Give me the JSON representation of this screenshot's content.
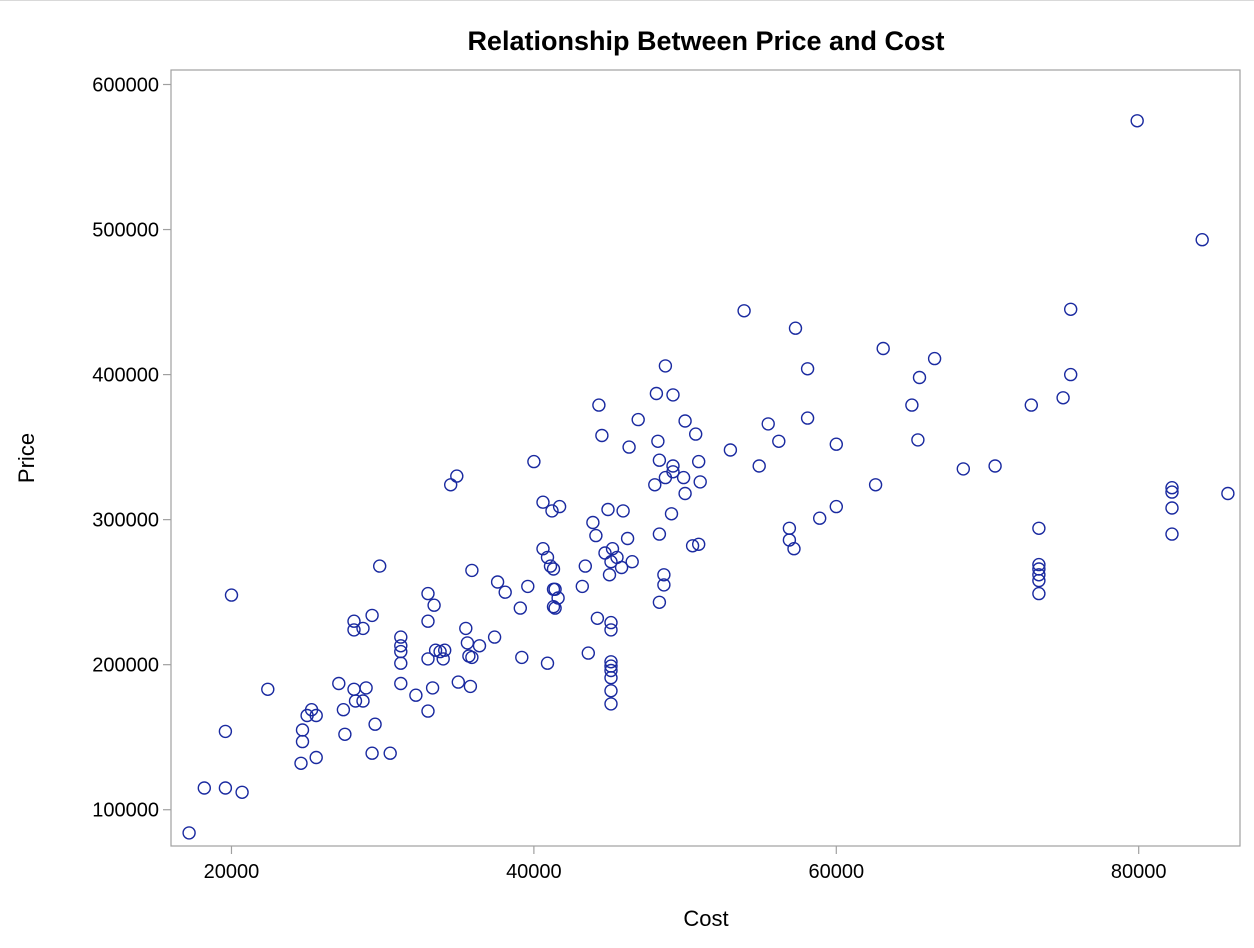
{
  "chart_data": {
    "type": "scatter",
    "title": "Relationship Between Price and Cost",
    "xlabel": "Cost",
    "ylabel": "Price",
    "xlim": [
      16000,
      86700
    ],
    "ylim": [
      75000,
      610000
    ],
    "xticks": [
      20000,
      40000,
      60000,
      80000
    ],
    "yticks": [
      100000,
      200000,
      300000,
      400000,
      500000,
      600000
    ],
    "xtick_labels": [
      "20000",
      "40000",
      "60000",
      "80000"
    ],
    "ytick_labels": [
      "100000",
      "200000",
      "300000",
      "400000",
      "500000",
      "600000"
    ],
    "grid": false,
    "legend": "none",
    "marker": "open-circle",
    "colors": {
      "marker": "#1a2aa0",
      "frame": "#a0a0a0",
      "text": "#000000"
    },
    "points": [
      [
        17200,
        84000
      ],
      [
        18200,
        115000
      ],
      [
        19600,
        115000
      ],
      [
        19600,
        154000
      ],
      [
        20000,
        248000
      ],
      [
        20700,
        112000
      ],
      [
        22400,
        183000
      ],
      [
        24600,
        132000
      ],
      [
        24700,
        147000
      ],
      [
        24700,
        155000
      ],
      [
        25000,
        165000
      ],
      [
        25300,
        169000
      ],
      [
        25600,
        165000
      ],
      [
        25600,
        136000
      ],
      [
        27100,
        187000
      ],
      [
        27400,
        169000
      ],
      [
        27500,
        152000
      ],
      [
        28100,
        230000
      ],
      [
        28100,
        224000
      ],
      [
        28100,
        183000
      ],
      [
        28200,
        175000
      ],
      [
        28700,
        175000
      ],
      [
        28700,
        225000
      ],
      [
        28900,
        184000
      ],
      [
        29300,
        234000
      ],
      [
        29300,
        139000
      ],
      [
        29500,
        159000
      ],
      [
        29800,
        268000
      ],
      [
        30500,
        139000
      ],
      [
        31200,
        219000
      ],
      [
        31200,
        213000
      ],
      [
        31200,
        209000
      ],
      [
        31200,
        201000
      ],
      [
        31200,
        187000
      ],
      [
        32200,
        179000
      ],
      [
        33000,
        249000
      ],
      [
        33000,
        230000
      ],
      [
        33000,
        204000
      ],
      [
        33000,
        168000
      ],
      [
        33300,
        184000
      ],
      [
        33400,
        241000
      ],
      [
        33500,
        210000
      ],
      [
        33800,
        209000
      ],
      [
        34000,
        204000
      ],
      [
        34100,
        210000
      ],
      [
        34500,
        324000
      ],
      [
        34900,
        330000
      ],
      [
        35000,
        188000
      ],
      [
        35500,
        225000
      ],
      [
        35600,
        215000
      ],
      [
        35700,
        206000
      ],
      [
        35800,
        185000
      ],
      [
        35900,
        205000
      ],
      [
        35900,
        265000
      ],
      [
        36400,
        213000
      ],
      [
        37400,
        219000
      ],
      [
        37600,
        257000
      ],
      [
        38100,
        250000
      ],
      [
        39100,
        239000
      ],
      [
        39200,
        205000
      ],
      [
        39600,
        254000
      ],
      [
        40000,
        340000
      ],
      [
        40600,
        312000
      ],
      [
        40600,
        280000
      ],
      [
        40900,
        274000
      ],
      [
        40900,
        201000
      ],
      [
        41100,
        268000
      ],
      [
        41200,
        306000
      ],
      [
        41300,
        266000
      ],
      [
        41300,
        252000
      ],
      [
        41300,
        240000
      ],
      [
        41400,
        252000
      ],
      [
        41400,
        239000
      ],
      [
        41600,
        246000
      ],
      [
        41700,
        309000
      ],
      [
        43200,
        254000
      ],
      [
        43400,
        268000
      ],
      [
        43600,
        208000
      ],
      [
        43900,
        298000
      ],
      [
        44100,
        289000
      ],
      [
        44200,
        232000
      ],
      [
        44300,
        379000
      ],
      [
        44500,
        358000
      ],
      [
        44700,
        277000
      ],
      [
        44900,
        307000
      ],
      [
        45000,
        262000
      ],
      [
        45100,
        271000
      ],
      [
        45100,
        229000
      ],
      [
        45100,
        224000
      ],
      [
        45100,
        202000
      ],
      [
        45100,
        199000
      ],
      [
        45100,
        196000
      ],
      [
        45100,
        191000
      ],
      [
        45100,
        182000
      ],
      [
        45100,
        173000
      ],
      [
        45200,
        280000
      ],
      [
        45500,
        274000
      ],
      [
        45800,
        267000
      ],
      [
        45900,
        306000
      ],
      [
        46200,
        287000
      ],
      [
        46300,
        350000
      ],
      [
        46500,
        271000
      ],
      [
        46900,
        369000
      ],
      [
        48000,
        324000
      ],
      [
        48100,
        387000
      ],
      [
        48200,
        354000
      ],
      [
        48300,
        341000
      ],
      [
        48300,
        290000
      ],
      [
        48300,
        243000
      ],
      [
        48600,
        262000
      ],
      [
        48600,
        255000
      ],
      [
        48700,
        329000
      ],
      [
        48700,
        406000
      ],
      [
        49100,
        304000
      ],
      [
        49200,
        386000
      ],
      [
        49200,
        337000
      ],
      [
        49200,
        333000
      ],
      [
        49900,
        329000
      ],
      [
        50000,
        368000
      ],
      [
        50000,
        318000
      ],
      [
        50500,
        282000
      ],
      [
        50700,
        359000
      ],
      [
        50900,
        283000
      ],
      [
        50900,
        340000
      ],
      [
        51000,
        326000
      ],
      [
        53000,
        348000
      ],
      [
        53900,
        444000
      ],
      [
        54900,
        337000
      ],
      [
        55500,
        366000
      ],
      [
        56200,
        354000
      ],
      [
        56900,
        294000
      ],
      [
        56900,
        286000
      ],
      [
        57200,
        280000
      ],
      [
        57300,
        432000
      ],
      [
        58100,
        404000
      ],
      [
        58100,
        370000
      ],
      [
        58900,
        301000
      ],
      [
        60000,
        352000
      ],
      [
        60000,
        309000
      ],
      [
        62600,
        324000
      ],
      [
        63100,
        418000
      ],
      [
        65000,
        379000
      ],
      [
        65400,
        355000
      ],
      [
        65500,
        398000
      ],
      [
        66500,
        411000
      ],
      [
        68400,
        335000
      ],
      [
        70500,
        337000
      ],
      [
        72900,
        379000
      ],
      [
        73400,
        294000
      ],
      [
        73400,
        269000
      ],
      [
        73400,
        266000
      ],
      [
        73400,
        262000
      ],
      [
        73400,
        258000
      ],
      [
        73400,
        249000
      ],
      [
        75000,
        384000
      ],
      [
        75500,
        445000
      ],
      [
        75500,
        400000
      ],
      [
        79900,
        575000
      ],
      [
        82200,
        322000
      ],
      [
        82200,
        319000
      ],
      [
        82200,
        308000
      ],
      [
        82200,
        290000
      ],
      [
        84200,
        493000
      ],
      [
        85900,
        318000
      ]
    ]
  }
}
